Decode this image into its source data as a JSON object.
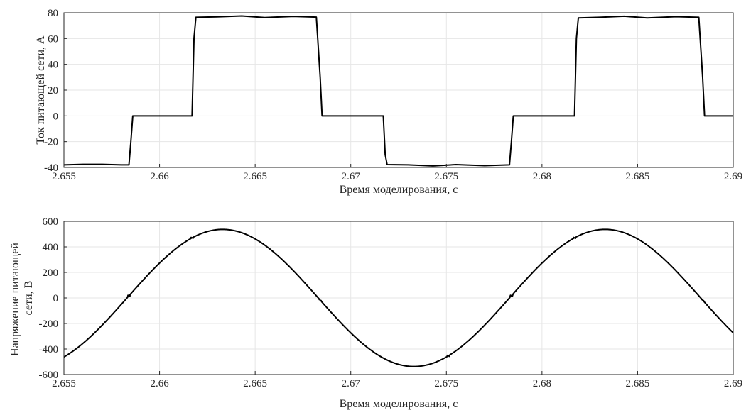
{
  "colors": {
    "line": "#000000",
    "grid": "#e6e6e6",
    "axis": "#262626",
    "background": "#ffffff"
  },
  "chart_data": [
    {
      "type": "line",
      "xlabel": "Время моделирования, с",
      "ylabel": "Ток питающей сети, А",
      "xlim": [
        2.655,
        2.69
      ],
      "ylim": [
        -40,
        80
      ],
      "xticks": [
        2.655,
        2.66,
        2.665,
        2.67,
        2.675,
        2.68,
        2.685,
        2.69
      ],
      "xtick_labels": [
        "2.655",
        "2.66",
        "2.665",
        "2.67",
        "2.675",
        "2.68",
        "2.685",
        "2.69"
      ],
      "yticks": [
        -40,
        -20,
        0,
        20,
        40,
        60,
        80
      ],
      "ytick_labels": [
        "-40",
        "-20",
        "0",
        "20",
        "40",
        "60",
        "80"
      ],
      "grid": true,
      "series": [
        {
          "x": [
            2.655,
            2.656,
            2.657,
            2.658,
            2.6584,
            2.6585,
            2.6586,
            2.66,
            2.6617,
            2.6618,
            2.6619,
            2.663,
            2.6643,
            2.6655,
            2.667,
            2.6682,
            2.6684,
            2.6685,
            2.669,
            2.6717,
            2.6718,
            2.6719,
            2.673,
            2.6743,
            2.6755,
            2.677,
            2.6783,
            2.6784,
            2.6785,
            2.68,
            2.6817,
            2.6818,
            2.6819,
            2.683,
            2.6843,
            2.6855,
            2.687,
            2.6882,
            2.6884,
            2.6885,
            2.69
          ],
          "y": [
            -38,
            -37.6,
            -37.6,
            -38,
            -38,
            -20,
            0,
            0,
            0,
            60,
            76.5,
            76.8,
            77.5,
            76.3,
            77.2,
            76.6,
            30,
            0,
            0,
            0,
            -30,
            -37.8,
            -38,
            -38.8,
            -37.8,
            -38.6,
            -38,
            -20,
            0,
            0,
            0,
            60,
            76,
            76.5,
            77.3,
            76,
            77,
            76.5,
            30,
            0,
            0
          ]
        }
      ]
    },
    {
      "type": "line",
      "xlabel": "Время моделирования, с",
      "ylabel": "Напряжение питающей сети, В",
      "ylabel_lines": [
        "Напряжение питающей",
        "сети, В"
      ],
      "xlim": [
        2.655,
        2.69
      ],
      "ylim": [
        -600,
        600
      ],
      "xticks": [
        2.655,
        2.66,
        2.665,
        2.67,
        2.675,
        2.68,
        2.685,
        2.69
      ],
      "xtick_labels": [
        "2.655",
        "2.66",
        "2.665",
        "2.67",
        "2.675",
        "2.68",
        "2.685",
        "2.69"
      ],
      "yticks": [
        -600,
        -400,
        -200,
        0,
        200,
        400,
        600
      ],
      "ytick_labels": [
        "-600",
        "-400",
        "-200",
        "0",
        "200",
        "400",
        "600"
      ],
      "grid": true,
      "series": [
        {
          "function": "sine",
          "amplitude": 537,
          "frequency_hz": 50,
          "peak_time_s": 2.6633,
          "notch_times_s": [
            2.6584,
            2.6617,
            2.6651,
            2.6684,
            2.6717,
            2.6751,
            2.6784,
            2.6817,
            2.6851,
            2.6884
          ]
        }
      ]
    }
  ]
}
